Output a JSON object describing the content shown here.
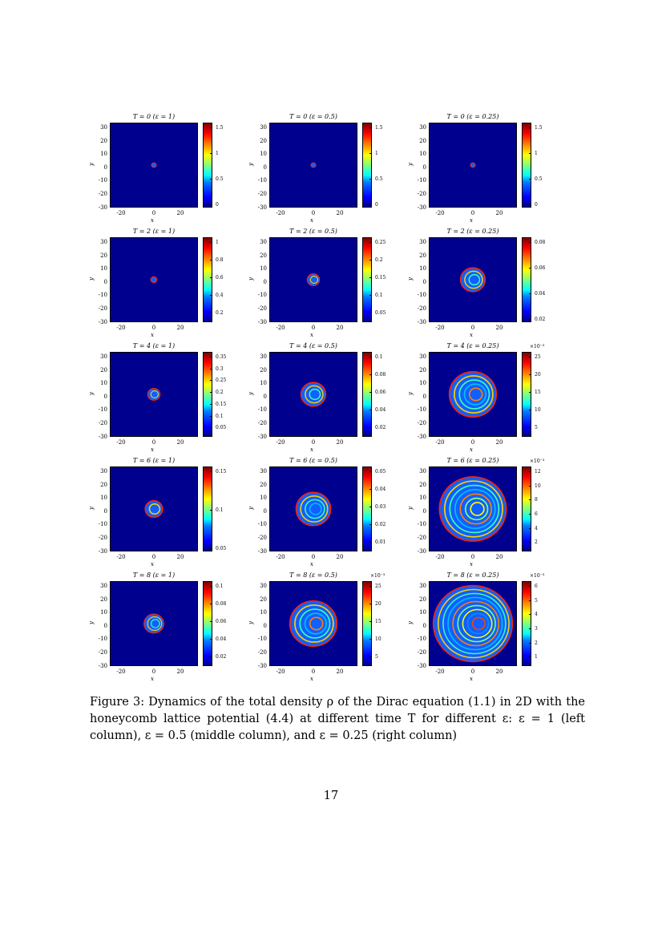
{
  "figure": {
    "axes": {
      "y_ticks": [
        "30",
        "20",
        "10",
        "0",
        "-10",
        "-20",
        "-30"
      ],
      "x_ticks": [
        "-20",
        "0",
        "20"
      ],
      "xlabel": "x",
      "ylabel": "y"
    },
    "panels": [
      {
        "title": "T = 0 (ε = 1)",
        "cbar_ticks": [
          "1.5",
          "1",
          "0.5",
          "0"
        ],
        "exponent": "",
        "radius": 2,
        "rings": 1
      },
      {
        "title": "T = 0 (ε = 0.5)",
        "cbar_ticks": [
          "1.5",
          "1",
          "0.5",
          "0"
        ],
        "exponent": "",
        "radius": 2,
        "rings": 1
      },
      {
        "title": "T = 0 (ε = 0.25)",
        "cbar_ticks": [
          "1.5",
          "1",
          "0.5",
          "0"
        ],
        "exponent": "",
        "radius": 2,
        "rings": 1
      },
      {
        "title": "T = 2 (ε = 1)",
        "cbar_ticks": [
          "1",
          "0.8",
          "0.6",
          "0.4",
          "0.2"
        ],
        "exponent": "",
        "radius": 2.5,
        "rings": 1
      },
      {
        "title": "T = 2 (ε = 0.5)",
        "cbar_ticks": [
          "0.25",
          "0.2",
          "0.15",
          "0.1",
          "0.05"
        ],
        "exponent": "",
        "radius": 5,
        "rings": 2
      },
      {
        "title": "T = 2 (ε = 0.25)",
        "cbar_ticks": [
          "0.08",
          "0.06",
          "0.04",
          "0.02"
        ],
        "exponent": "",
        "radius": 10,
        "rings": 3
      },
      {
        "title": "T = 4 (ε = 1)",
        "cbar_ticks": [
          "0.35",
          "0.3",
          "0.25",
          "0.2",
          "0.15",
          "0.1",
          "0.05"
        ],
        "exponent": "",
        "radius": 5,
        "rings": 2
      },
      {
        "title": "T = 4 (ε = 0.5)",
        "cbar_ticks": [
          "0.1",
          "0.08",
          "0.06",
          "0.04",
          "0.02"
        ],
        "exponent": "",
        "radius": 10,
        "rings": 3
      },
      {
        "title": "T = 4 (ε = 0.25)",
        "cbar_ticks": [
          "25",
          "20",
          "15",
          "10",
          "5"
        ],
        "exponent": "×10⁻³",
        "radius": 19,
        "rings": 5
      },
      {
        "title": "T = 6 (ε = 1)",
        "cbar_ticks": [
          "0.15",
          "0.1",
          "0.05"
        ],
        "exponent": "",
        "radius": 7,
        "rings": 2
      },
      {
        "title": "T = 6 (ε = 0.5)",
        "cbar_ticks": [
          "0.05",
          "0.04",
          "0.03",
          "0.02",
          "0.01"
        ],
        "exponent": "",
        "radius": 14,
        "rings": 4
      },
      {
        "title": "T = 6 (ε = 0.25)",
        "cbar_ticks": [
          "12",
          "10",
          "8",
          "6",
          "4",
          "2"
        ],
        "exponent": "×10⁻³",
        "radius": 27,
        "rings": 7
      },
      {
        "title": "T = 8 (ε = 1)",
        "cbar_ticks": [
          "0.1",
          "0.08",
          "0.06",
          "0.04",
          "0.02"
        ],
        "exponent": "",
        "radius": 8,
        "rings": 3
      },
      {
        "title": "T = 8 (ε = 0.5)",
        "cbar_ticks": [
          "25",
          "20",
          "15",
          "10",
          "5"
        ],
        "exponent": "×10⁻³",
        "radius": 19,
        "rings": 5
      },
      {
        "title": "T = 8 (ε = 0.25)",
        "cbar_ticks": [
          "6",
          "5",
          "4",
          "3",
          "2",
          "1"
        ],
        "exponent": "×10⁻³",
        "radius": 32,
        "rings": 9
      }
    ]
  },
  "caption": "Figure 3: Dynamics of the total density ρ of the Dirac equation (1.1) in 2D with the honeycomb lattice potential (4.4) at different time T for different ε: ε = 1 (left column), ε = 0.5 (middle column), and ε = 0.25 (right column)",
  "page_number": "17"
}
